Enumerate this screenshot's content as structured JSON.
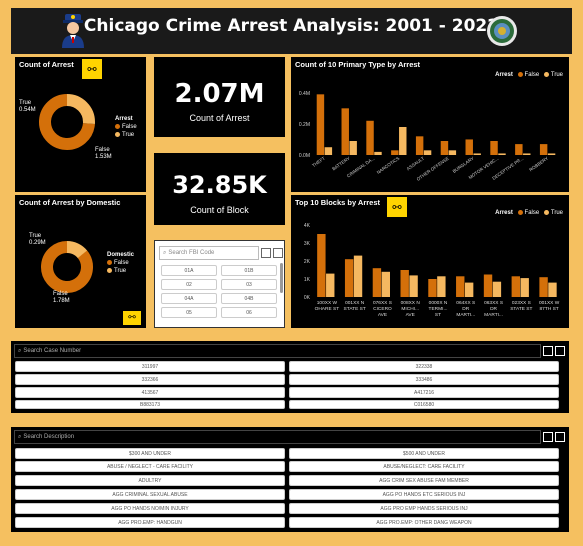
{
  "header": {
    "title": "Chicago Crime Arrest Analysis: 2001 - 2022"
  },
  "arrest_donut": {
    "title": "Count of Arrest",
    "legend_title": "Arrest",
    "true_label": "True",
    "true_value": "0.54M",
    "false_label": "False",
    "false_value": "1.53M",
    "legend_items": [
      "False",
      "True"
    ]
  },
  "domestic_donut": {
    "title": "Count of Arrest by Domestic",
    "legend_title": "Domestic",
    "true_label": "True",
    "true_value": "0.29M",
    "false_label": "False",
    "false_value": "1.78M",
    "legend_items": [
      "False",
      "True"
    ]
  },
  "kpi_arrest": {
    "value": "2.07M",
    "label": "Count of Arrest"
  },
  "kpi_block": {
    "value": "32.85K",
    "label": "Count of Block"
  },
  "fbi_slicer": {
    "placeholder": "Search FBI Code",
    "codes": [
      "01A",
      "01B",
      "02",
      "03",
      "04A",
      "04B",
      "05",
      "06"
    ]
  },
  "case_slicer": {
    "placeholder": "Search Case Number",
    "items": [
      "311997",
      "322338",
      "332366",
      "333486",
      "413567",
      "A417216",
      "B883173",
      "C016580"
    ]
  },
  "desc_slicer": {
    "placeholder": "Search Description",
    "items": [
      "$300 AND UNDER",
      "$500 AND UNDER",
      "ABUSE / NEGLECT - CARE FACILITY",
      "ABUSE/NEGLECT: CARE FACILITY",
      "ADULTRY",
      "AGG CRIM SEX ABUSE FAM MEMBER",
      "AGG CRIMINAL SEXUAL ABUSE",
      "AGG PO HANDS ETC SERIOUS INJ",
      "AGG PO HANDS NO/MIN INJURY",
      "AGG PRO EMP HANDS SERIOUS INJ",
      "AGG PRO.EMP: HANDGUN",
      "AGG PRO.EMP: OTHER DANG WEAPON"
    ]
  },
  "chart_data": [
    {
      "type": "pie",
      "title": "Count of Arrest",
      "legend_title": "Arrest",
      "series": [
        {
          "name": "False",
          "value": 1.53
        },
        {
          "name": "True",
          "value": 0.54
        }
      ],
      "unit": "M"
    },
    {
      "type": "pie",
      "title": "Count of Arrest by Domestic",
      "legend_title": "Domestic",
      "series": [
        {
          "name": "False",
          "value": 1.78
        },
        {
          "name": "True",
          "value": 0.29
        }
      ],
      "unit": "M"
    },
    {
      "type": "bar",
      "title": "Count of 10 Primary Type by Arrest",
      "legend_title": "Arrest",
      "categories": [
        "THEFT",
        "BATTERY",
        "CRIMINAL DA...",
        "NARCOTICS",
        "ASSAULT",
        "OTHER OFFENSE",
        "BURGLARY",
        "MOTOR VEHIC...",
        "DECEPTIVE PR...",
        "ROBBERY"
      ],
      "series": [
        {
          "name": "False",
          "values": [
            0.39,
            0.3,
            0.22,
            0.03,
            0.12,
            0.09,
            0.1,
            0.09,
            0.07,
            0.07
          ]
        },
        {
          "name": "True",
          "values": [
            0.05,
            0.09,
            0.02,
            0.18,
            0.03,
            0.03,
            0.01,
            0.01,
            0.01,
            0.01
          ]
        }
      ],
      "yticks": [
        "0.0M",
        "0.2M",
        "0.4M"
      ],
      "ylim": [
        0,
        0.45
      ]
    },
    {
      "type": "bar",
      "title": "Top 10 Blocks by Arrest",
      "legend_title": "Arrest",
      "categories": [
        "100XX W OHARE ST",
        "001XX N STATE ST",
        "076XX S CICERO AVE",
        "008XX N MICHI... AVE",
        "0000X N TERMI... ST",
        "064XX S DR MARTI...",
        "063XX S DR MARTI...",
        "023XX S STATE ST",
        "001XX W 87TH ST"
      ],
      "series": [
        {
          "name": "False",
          "values": [
            3500,
            2100,
            1600,
            1500,
            1000,
            1150,
            1250,
            1150,
            1100
          ]
        },
        {
          "name": "True",
          "values": [
            1300,
            2300,
            1400,
            1200,
            1150,
            800,
            850,
            1050,
            800
          ]
        }
      ],
      "yticks": [
        "0K",
        "1K",
        "2K",
        "3K",
        "4K"
      ],
      "ylim": [
        0,
        4000
      ]
    }
  ],
  "colors": {
    "false": "#d4700a",
    "true": "#f5b860",
    "accent": "#ffd400",
    "background": "#f5c060"
  }
}
